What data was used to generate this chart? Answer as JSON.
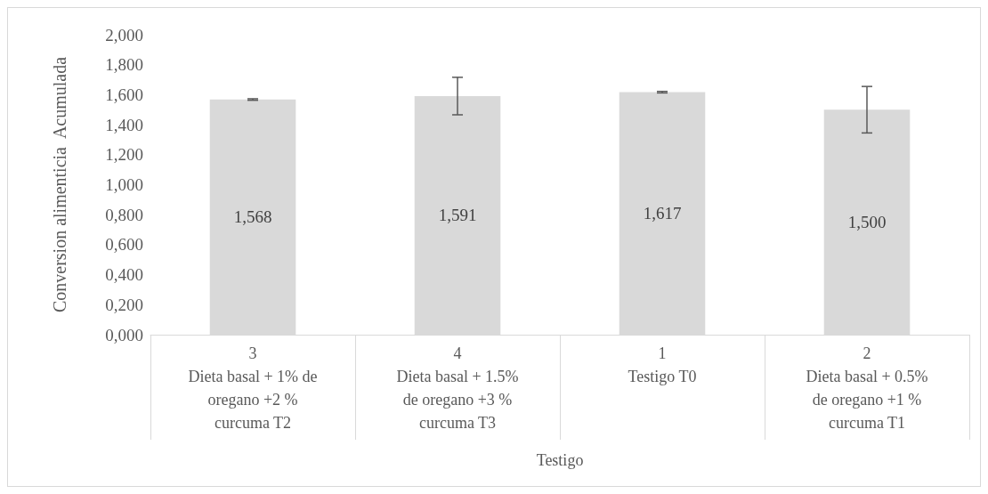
{
  "chart_data": {
    "type": "bar",
    "xlabel": "Testigo",
    "ylabel": "Conversion alimenticia  Acumulada",
    "categories": [
      "3\nDieta basal + 1% de\noregano +2 %\ncurcuma T2",
      "4\nDieta basal + 1.5%\nde oregano +3 %\ncurcuma T3",
      "1\nTestigo T0\n\n",
      "2\nDieta basal + 0.5%\nde oregano +1 %\ncurcuma T1"
    ],
    "values": [
      1.568,
      1.591,
      1.617,
      1.5
    ],
    "value_labels": [
      "1,568",
      "1,591",
      "1,617",
      "1,500"
    ],
    "errors": [
      0.005,
      0.125,
      0.005,
      0.155
    ],
    "color": "#d9d9d9",
    "ylim": [
      0,
      2
    ],
    "yticks": [
      {
        "value": 0,
        "label": "0,000"
      },
      {
        "value": 0.2,
        "label": "0,200"
      },
      {
        "value": 0.4,
        "label": "0,400"
      },
      {
        "value": 0.6,
        "label": "0,600"
      },
      {
        "value": 0.8,
        "label": "0,800"
      },
      {
        "value": 1,
        "label": "1,000"
      },
      {
        "value": 1.2,
        "label": "1,200"
      },
      {
        "value": 1.4,
        "label": "1,400"
      },
      {
        "value": 1.6,
        "label": "1,600"
      },
      {
        "value": 1.8,
        "label": "1,800"
      },
      {
        "value": 2,
        "label": "2,000"
      }
    ],
    "grid": false
  }
}
